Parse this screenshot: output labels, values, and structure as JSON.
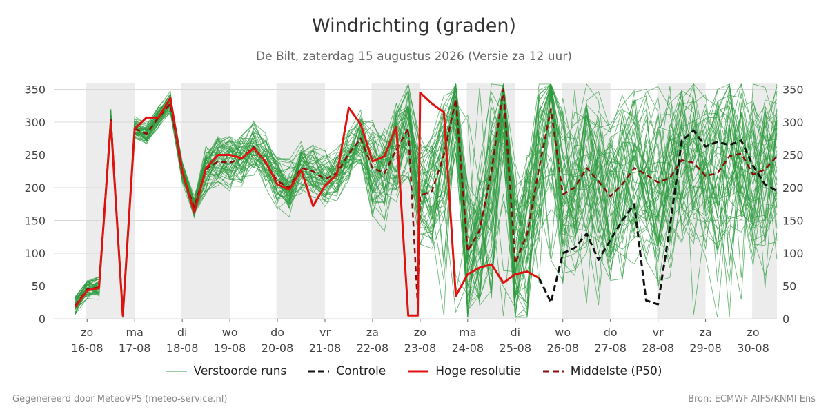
{
  "title": "Windrichting (graden)",
  "subtitle": "De Bilt, zaterdag 15 augustus 2026 (Versie za 12 uur)",
  "footer": {
    "left": "Gegenereerd door MeteoVPS (meteo-service.nl)",
    "right": "Bron: ECMWF AIFS/KNMI Ens"
  },
  "legend": [
    {
      "label": "Verstoorde runs",
      "color": "#2e9b3e",
      "style": "thin"
    },
    {
      "label": "Controle",
      "color": "#111111",
      "style": "dashed"
    },
    {
      "label": "Hoge resolutie",
      "color": "#e0120f",
      "style": "solid"
    },
    {
      "label": "Middelste (P50)",
      "color": "#8b0c0c",
      "style": "dashed"
    }
  ],
  "chart_data": {
    "type": "line",
    "title": "Windrichting (graden)",
    "x_unit": "dagen vanaf 16-08 00:00",
    "xlim": [
      -0.7,
      14.5
    ],
    "ylim": [
      0,
      360
    ],
    "yticks": [
      0,
      50,
      100,
      150,
      200,
      250,
      300,
      350
    ],
    "x_ticks": [
      {
        "day": "zo",
        "date": "16-08"
      },
      {
        "day": "ma",
        "date": "17-08"
      },
      {
        "day": "di",
        "date": "18-08"
      },
      {
        "day": "wo",
        "date": "19-08"
      },
      {
        "day": "do",
        "date": "20-08"
      },
      {
        "day": "vr",
        "date": "21-08"
      },
      {
        "day": "za",
        "date": "22-08"
      },
      {
        "day": "zo",
        "date": "23-08"
      },
      {
        "day": "ma",
        "date": "24-08"
      },
      {
        "day": "di",
        "date": "25-08"
      },
      {
        "day": "wo",
        "date": "26-08"
      },
      {
        "day": "do",
        "date": "27-08"
      },
      {
        "day": "vr",
        "date": "28-08"
      },
      {
        "day": "za",
        "date": "29-08"
      },
      {
        "day": "zo",
        "date": "30-08"
      }
    ],
    "shaded_days": [
      [
        -0.02,
        1.0
      ],
      [
        1.98,
        3.0
      ],
      [
        3.98,
        5.0
      ],
      [
        5.98,
        7.0
      ],
      [
        7.98,
        9.0
      ],
      [
        9.98,
        11.0
      ],
      [
        11.98,
        13.0
      ],
      [
        13.98,
        14.5
      ]
    ],
    "ensemble_member_count": 50,
    "series": [
      {
        "name": "Hoge resolutie",
        "color": "#e0120f",
        "x": [
          -0.25,
          0.0,
          0.25,
          0.5,
          0.75,
          1.0,
          1.25,
          1.5,
          1.75,
          2.0,
          2.25,
          2.5,
          2.75,
          3.0,
          3.25,
          3.5,
          3.75,
          4.0,
          4.25,
          4.5,
          4.75,
          5.0,
          5.25,
          5.5,
          5.75,
          6.0,
          6.25,
          6.5,
          6.75,
          6.95,
          7.0,
          7.25,
          7.5,
          7.75,
          8.0,
          8.25,
          8.5,
          8.75,
          9.0,
          9.25,
          9.5
        ],
        "y": [
          18,
          43,
          47,
          300,
          5,
          290,
          307,
          307,
          337,
          225,
          162,
          230,
          250,
          250,
          245,
          260,
          240,
          205,
          197,
          227,
          172,
          203,
          220,
          322,
          297,
          240,
          248,
          293,
          5,
          5,
          345,
          328,
          315,
          35,
          68,
          78,
          83,
          55,
          68,
          72,
          62
        ]
      },
      {
        "name": "Controle",
        "color": "#111111",
        "x": [
          9.5,
          9.75,
          10.0,
          10.25,
          10.5,
          10.75,
          11.0,
          11.25,
          11.5,
          11.75,
          12.0,
          12.25,
          12.5,
          12.75,
          13.0,
          13.25,
          13.5,
          13.75,
          14.0,
          14.25,
          14.5
        ],
        "y": [
          62,
          25,
          100,
          108,
          130,
          90,
          120,
          150,
          175,
          28,
          22,
          140,
          272,
          287,
          263,
          270,
          265,
          272,
          233,
          205,
          195
        ]
      },
      {
        "name": "Middelste (P50)",
        "color": "#8b0c0c",
        "x": [
          -0.25,
          0.0,
          0.25,
          0.5,
          0.75,
          1.0,
          1.25,
          1.5,
          1.75,
          2.0,
          2.25,
          2.5,
          2.75,
          3.0,
          3.25,
          3.5,
          3.75,
          4.0,
          4.25,
          4.5,
          4.75,
          5.0,
          5.25,
          5.5,
          5.75,
          6.0,
          6.25,
          6.5,
          6.75,
          6.95,
          7.0,
          7.25,
          7.5,
          7.75,
          8.0,
          8.25,
          8.5,
          8.75,
          9.0,
          9.25,
          9.5,
          9.75,
          10.0,
          10.25,
          10.5,
          10.75,
          11.0,
          11.25,
          11.5,
          11.75,
          12.0,
          12.25,
          12.5,
          12.75,
          13.0,
          13.25,
          13.5,
          13.75,
          14.0,
          14.25,
          14.5
        ],
        "y": [
          20,
          45,
          48,
          303,
          5,
          290,
          282,
          307,
          328,
          222,
          170,
          228,
          240,
          238,
          245,
          262,
          238,
          210,
          200,
          230,
          225,
          213,
          222,
          252,
          275,
          230,
          222,
          258,
          290,
          20,
          188,
          195,
          250,
          335,
          103,
          135,
          225,
          350,
          85,
          130,
          230,
          320,
          190,
          200,
          230,
          210,
          187,
          205,
          230,
          220,
          208,
          215,
          242,
          238,
          218,
          222,
          248,
          252,
          220,
          228,
          248
        ]
      }
    ]
  }
}
